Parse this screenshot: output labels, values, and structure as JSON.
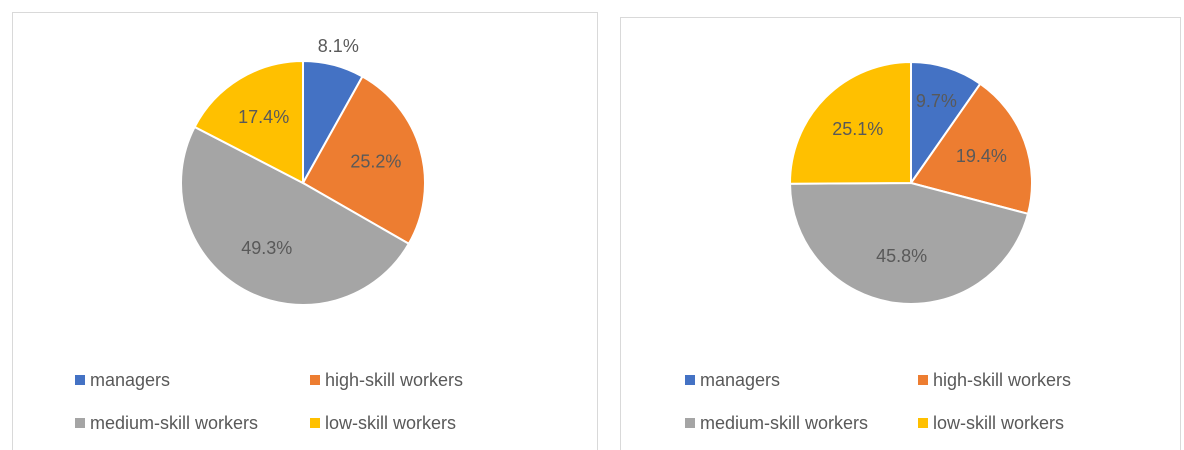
{
  "chart_data": [
    {
      "type": "pie",
      "categories": [
        "managers",
        "high-skill workers",
        "medium-skill workers",
        "low-skill workers"
      ],
      "values": [
        8.1,
        25.2,
        49.3,
        17.4
      ],
      "value_labels": [
        "8.1%",
        "25.2%",
        "49.3%",
        "17.4%"
      ],
      "colors": [
        "#4472c4",
        "#ed7d31",
        "#a5a5a5",
        "#ffc000"
      ]
    },
    {
      "type": "pie",
      "categories": [
        "managers",
        "high-skill workers",
        "medium-skill workers",
        "low-skill workers"
      ],
      "values": [
        9.7,
        19.4,
        45.8,
        25.1
      ],
      "value_labels": [
        "9.7%",
        "19.4%",
        "45.8%",
        "25.1%"
      ],
      "colors": [
        "#4472c4",
        "#ed7d31",
        "#a5a5a5",
        "#ffc000"
      ]
    }
  ]
}
